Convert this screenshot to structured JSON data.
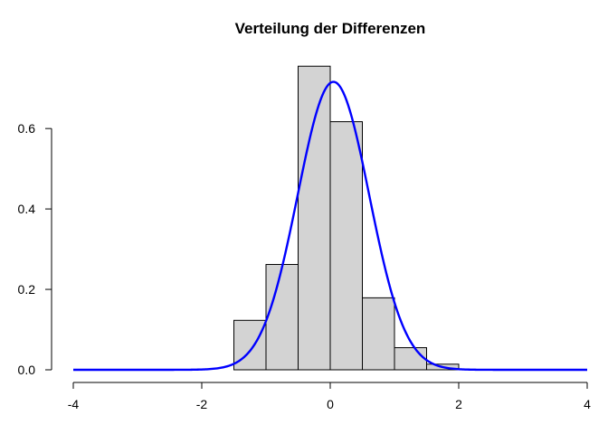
{
  "chart_data": {
    "type": "bar",
    "title": "Verteilung der Differenzen",
    "xlabel": "",
    "ylabel": "",
    "xlim": [
      -4,
      4
    ],
    "ylim": [
      0,
      0.76
    ],
    "x_ticks": [
      -4,
      -2,
      0,
      2,
      4
    ],
    "y_ticks": [
      0.0,
      0.2,
      0.4,
      0.6
    ],
    "x_tick_labels": [
      "-4",
      "-2",
      "0",
      "2",
      "4"
    ],
    "y_tick_labels": [
      "0.0",
      "0.2",
      "0.4",
      "0.6"
    ],
    "bins": [
      {
        "from": -1.5,
        "to": -1.0,
        "density": 0.123
      },
      {
        "from": -1.0,
        "to": -0.5,
        "density": 0.262
      },
      {
        "from": -0.5,
        "to": 0.0,
        "density": 0.755
      },
      {
        "from": 0.0,
        "to": 0.5,
        "density": 0.617
      },
      {
        "from": 0.5,
        "to": 1.0,
        "density": 0.179
      },
      {
        "from": 1.0,
        "to": 1.5,
        "density": 0.055
      },
      {
        "from": 1.5,
        "to": 2.0,
        "density": 0.014
      }
    ],
    "density_curve": {
      "mean": 0.05,
      "sd": 0.557,
      "color": "#0000ff",
      "x_from": -4,
      "x_to": 4
    },
    "bar_fill": "#d3d3d3",
    "grid": false
  }
}
